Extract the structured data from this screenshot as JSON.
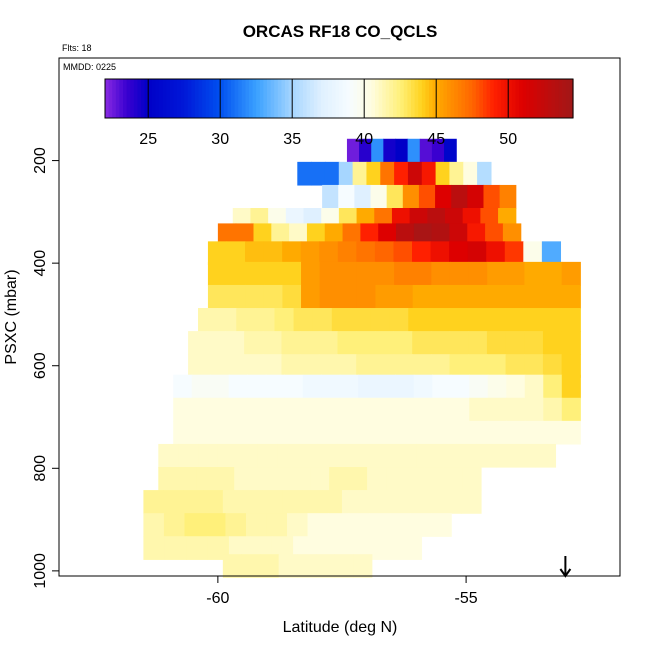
{
  "chart_data": {
    "type": "heatmap",
    "title": "ORCAS RF18 CO_QCLS",
    "flights_label": "Flts: 18",
    "date_label": "MMDD: 0225",
    "xlabel": "Latitude (deg N)",
    "ylabel": "PSXC (mbar)",
    "x_ticks": [
      -60,
      -55
    ],
    "y_ticks": [
      200,
      400,
      600,
      800,
      1000
    ],
    "xlim": [
      -63.2,
      -51.9
    ],
    "ylim": [
      1010,
      0
    ],
    "colorbar": {
      "range": [
        22,
        54.5
      ],
      "ticks": [
        25,
        30,
        35,
        40,
        45,
        50
      ],
      "stops": [
        {
          "v": 22.0,
          "color": "#8a2be2"
        },
        {
          "v": 23.5,
          "color": "#3a00d0"
        },
        {
          "v": 25.0,
          "color": "#0000c8"
        },
        {
          "v": 27.5,
          "color": "#0018d8"
        },
        {
          "v": 30.0,
          "color": "#0050f0"
        },
        {
          "v": 32.5,
          "color": "#3aa0ff"
        },
        {
          "v": 35.0,
          "color": "#a6d6ff"
        },
        {
          "v": 37.0,
          "color": "#dff0ff"
        },
        {
          "v": 39.0,
          "color": "#f6fcff"
        },
        {
          "v": 40.5,
          "color": "#fffde0"
        },
        {
          "v": 42.5,
          "color": "#fff07a"
        },
        {
          "v": 44.0,
          "color": "#ffd21e"
        },
        {
          "v": 45.0,
          "color": "#ffaa00"
        },
        {
          "v": 47.5,
          "color": "#ff6600"
        },
        {
          "v": 49.0,
          "color": "#ff2000"
        },
        {
          "v": 51.0,
          "color": "#dd0000"
        },
        {
          "v": 54.5,
          "color": "#a01818"
        }
      ]
    },
    "arrow_latitude": -53,
    "cell_height_mbar": 22.5,
    "rows": [
      {
        "p": 180,
        "lat0": -57.4,
        "lat1": -55.2,
        "values": [
          22.5,
          24,
          32,
          24.5,
          25,
          32,
          23,
          23.5,
          25.5
        ]
      },
      {
        "p": 225,
        "lat0": -58.4,
        "lat1": -54.5,
        "values": [
          31,
          31,
          31,
          35,
          42,
          44,
          47,
          49,
          52,
          49.5,
          44,
          42,
          40.5,
          35.5
        ]
      },
      {
        "p": 270,
        "lat0": -57.9,
        "lat1": -54.0,
        "values": [
          36,
          39,
          37,
          40,
          43,
          46,
          48,
          51,
          53,
          51.5,
          48,
          46.5
        ]
      },
      {
        "p": 315,
        "lat0": -59.7,
        "lat1": -54.0,
        "values": [
          41,
          42,
          40,
          38,
          37,
          40,
          43,
          45,
          47,
          50,
          52,
          53,
          52,
          50,
          48,
          45
        ]
      },
      {
        "p": 345,
        "lat0": -60.0,
        "lat1": -53.9,
        "values": [
          47,
          47,
          44,
          42,
          41,
          44,
          45,
          47,
          49,
          51,
          53,
          54,
          53.5,
          52,
          49.5,
          48,
          46
        ]
      },
      {
        "p": 380,
        "lat0": -60.2,
        "lat1": -53.1,
        "values": [
          44,
          44,
          44.5,
          44.5,
          45,
          45.5,
          46,
          46.5,
          47,
          47.5,
          48,
          49,
          50,
          51,
          51.5,
          50,
          48.5,
          40,
          33
        ]
      },
      {
        "p": 420,
        "lat0": -60.2,
        "lat1": -52.7,
        "values": [
          44,
          44,
          44,
          44,
          44,
          45.5,
          46,
          46,
          46,
          46,
          46.5,
          46.5,
          46,
          46,
          46,
          45.5,
          45.5,
          45,
          45,
          45.5
        ]
      },
      {
        "p": 465,
        "lat0": -60.2,
        "lat1": -52.7,
        "values": [
          43,
          43,
          43,
          43,
          43.5,
          45.5,
          46,
          46,
          46,
          45.5,
          45.5,
          45,
          45,
          45,
          45,
          45,
          45,
          45,
          45,
          45
        ]
      },
      {
        "p": 510,
        "lat0": -60.4,
        "lat1": -52.7,
        "values": [
          41.5,
          41.5,
          42,
          42,
          42.5,
          43,
          43,
          43.5,
          43.5,
          43.5,
          43.5,
          44,
          44,
          44,
          44,
          44,
          44,
          44,
          44,
          44
        ]
      },
      {
        "p": 555,
        "lat0": -60.6,
        "lat1": -52.7,
        "values": [
          41,
          41,
          41,
          41.5,
          41.5,
          42,
          42,
          42,
          42.5,
          42.5,
          42.5,
          42.5,
          43,
          43,
          43,
          43,
          43.5,
          43.5,
          43.5,
          44,
          44
        ]
      },
      {
        "p": 600,
        "lat0": -60.6,
        "lat1": -52.7,
        "values": [
          41,
          41,
          41,
          41,
          41,
          41.5,
          41.5,
          41.5,
          41.5,
          42,
          42,
          42,
          42,
          42,
          42.5,
          42.5,
          42.5,
          43,
          43,
          43.5,
          44
        ]
      },
      {
        "p": 640,
        "lat0": -60.9,
        "lat1": -52.7,
        "values": [
          39,
          39.5,
          39.5,
          39,
          39,
          39,
          39,
          38.5,
          38.5,
          38.5,
          38,
          38,
          38,
          38.5,
          39,
          39,
          39.5,
          40,
          40.5,
          41,
          42.5,
          44
        ]
      },
      {
        "p": 685,
        "lat0": -60.9,
        "lat1": -52.7,
        "values": [
          40.5,
          40.5,
          40.5,
          40.5,
          40.5,
          40.5,
          40.5,
          40.5,
          40.5,
          40.5,
          40.5,
          40.5,
          40.5,
          40.5,
          40.5,
          40.5,
          41,
          41,
          41,
          41,
          41.5,
          42.5
        ]
      },
      {
        "p": 730,
        "lat0": -60.9,
        "lat1": -52.7,
        "values": [
          40.5,
          40.5,
          40.5,
          40.5,
          40.5,
          40.5,
          40.5,
          40.5,
          40.5,
          40.5,
          40.5,
          40.5,
          40.5,
          40.5,
          40.5,
          40.5,
          40.5,
          40.5,
          40.5,
          40.5,
          40.5,
          40.5
        ]
      },
      {
        "p": 775,
        "lat0": -61.2,
        "lat1": -53.2,
        "values": [
          41,
          41,
          41,
          41,
          41,
          41,
          41,
          41,
          41,
          41,
          41,
          41,
          41,
          41,
          41,
          41,
          41,
          41,
          41,
          41
        ]
      },
      {
        "p": 820,
        "lat0": -61.2,
        "lat1": -54.7,
        "values": [
          41.5,
          41.5,
          41.5,
          41.5,
          41,
          41,
          41,
          41,
          41,
          41.5,
          41.5,
          41,
          41,
          41,
          41,
          41,
          41
        ]
      },
      {
        "p": 865,
        "lat0": -61.5,
        "lat1": -54.7,
        "values": [
          42,
          42,
          42,
          42,
          41.5,
          41.5,
          41.5,
          41.5,
          41.5,
          41.5,
          41,
          41,
          41,
          41,
          41,
          41,
          41
        ]
      },
      {
        "p": 910,
        "lat0": -61.5,
        "lat1": -55.3,
        "values": [
          41.5,
          42,
          42.5,
          42.5,
          42,
          41.5,
          41.5,
          41,
          40.5,
          40.5,
          40.5,
          40.5,
          40.5,
          40.5,
          40.5
        ]
      },
      {
        "p": 955,
        "lat0": -61.5,
        "lat1": -55.9,
        "values": [
          41.5,
          41.5,
          41.5,
          41.5,
          41,
          41,
          41,
          40.5,
          40.5,
          40.5,
          40.5,
          40.5,
          40.5
        ]
      },
      {
        "p": 990,
        "lat0": -59.9,
        "lat1": -56.9,
        "values": [
          41.5,
          41.5,
          41.5,
          41,
          41,
          41,
          41,
          41
        ]
      }
    ]
  }
}
